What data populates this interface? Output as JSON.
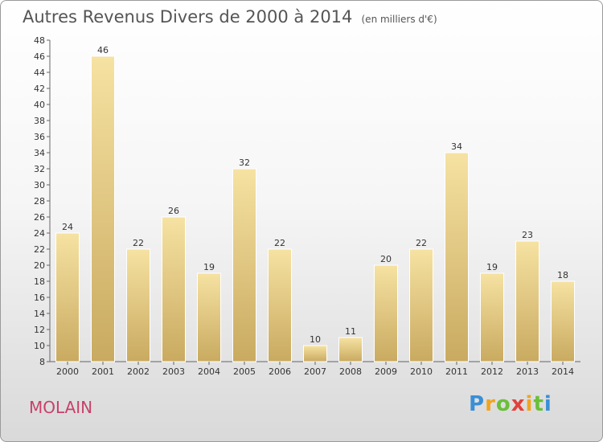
{
  "header": {
    "title": "Autres Revenus Divers de 2000 à 2014",
    "unit_note": "(en milliers d'€)"
  },
  "footer": {
    "town": "MOLAIN",
    "brand": "Proxiti"
  },
  "colors": {
    "bar_light": "#f6e2a2",
    "bar_dark": "#c9aa60",
    "axis": "#666666",
    "title": "#555555",
    "town": "#c8416a"
  },
  "chart_data": {
    "type": "bar",
    "title": "Autres Revenus Divers de 2000 à 2014",
    "xlabel": "",
    "ylabel": "",
    "ylim": [
      8,
      48
    ],
    "yticks": [
      8,
      10,
      12,
      14,
      16,
      18,
      20,
      22,
      24,
      26,
      28,
      30,
      32,
      34,
      36,
      38,
      40,
      42,
      44,
      46,
      48
    ],
    "grid": false,
    "categories": [
      "2000",
      "2001",
      "2002",
      "2003",
      "2004",
      "2005",
      "2006",
      "2007",
      "2008",
      "2009",
      "2010",
      "2011",
      "2012",
      "2013",
      "2014"
    ],
    "values": [
      24,
      46,
      22,
      26,
      19,
      32,
      22,
      10,
      11,
      20,
      22,
      34,
      19,
      23,
      18
    ]
  }
}
